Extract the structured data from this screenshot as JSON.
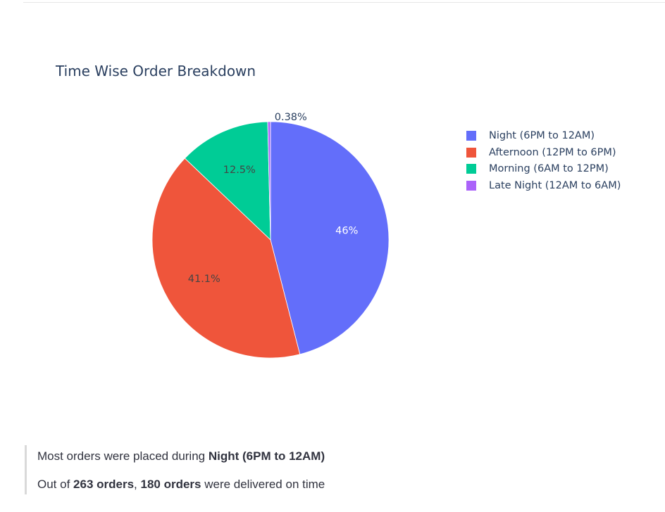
{
  "chart_data": {
    "type": "pie",
    "title": "Time Wise Order Breakdown",
    "slices": [
      {
        "label": "Night (6PM to 12AM)",
        "value": 46,
        "display": "46%",
        "color": "#636efa"
      },
      {
        "label": "Afternoon (12PM to 6PM)",
        "value": 41.1,
        "display": "41.1%",
        "color": "#ef553b"
      },
      {
        "label": "Morning (6AM to 12PM)",
        "value": 12.5,
        "display": "12.5%",
        "color": "#00cc96"
      },
      {
        "label": "Late Night (12AM to 6AM)",
        "value": 0.38,
        "display": "0.38%",
        "color": "#ab63fa"
      }
    ],
    "legend_position": "right",
    "direction": "clockwise",
    "start": "12 o'clock"
  },
  "summary": {
    "line1_prefix": "Most orders were placed during ",
    "line1_bold": "Night (6PM to 12AM)",
    "line2_prefix": "Out of ",
    "line2_bold1": "263 orders",
    "line2_mid": ", ",
    "line2_bold2": "180 orders",
    "line2_suffix": " were delivered on time"
  }
}
